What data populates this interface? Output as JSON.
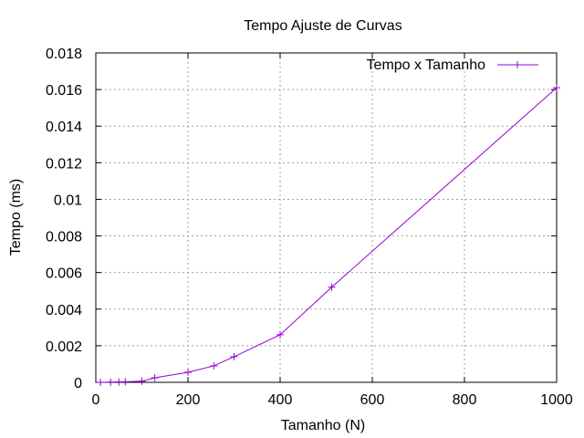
{
  "chart_data": {
    "type": "line",
    "title": "Tempo Ajuste de Curvas",
    "xlabel": "Tamanho (N)",
    "ylabel": "Tempo (ms)",
    "xlim": [
      0,
      1000
    ],
    "ylim": [
      0,
      0.018
    ],
    "x_ticks": [
      "0",
      "200",
      "400",
      "600",
      "800",
      "1000"
    ],
    "y_ticks": [
      "0",
      "0.002",
      "0.004",
      "0.006",
      "0.008",
      "0.01",
      "0.012",
      "0.014",
      "0.016",
      "0.018"
    ],
    "grid": true,
    "legend_position": "top-right",
    "series": [
      {
        "name": "Tempo x Tamanho",
        "color": "#9400d3",
        "marker": "plus",
        "x": [
          10,
          32,
          50,
          64,
          100,
          128,
          200,
          256,
          300,
          400,
          512,
          1000
        ],
        "y": [
          1e-06,
          1e-05,
          2e-05,
          3e-05,
          6e-05,
          0.00025,
          0.00055,
          0.0009,
          0.0014,
          0.0026,
          0.0052,
          0.0161
        ]
      }
    ]
  }
}
